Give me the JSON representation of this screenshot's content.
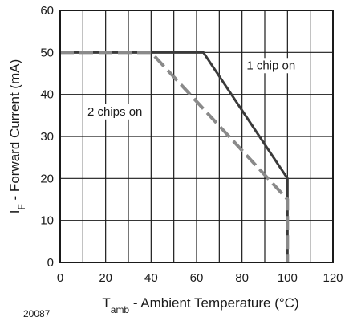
{
  "chart_data": {
    "type": "line",
    "title": "",
    "xlabel": {
      "main": "T",
      "sub": "amb",
      "rest": " - Ambient Temperature (°C)"
    },
    "ylabel": {
      "main": "I",
      "sub": "F",
      "rest": " - Forward Current (mA)"
    },
    "xlim": [
      0,
      120
    ],
    "ylim": [
      0,
      60
    ],
    "xticks": [
      0,
      20,
      40,
      60,
      80,
      100,
      120
    ],
    "yticks": [
      0,
      10,
      20,
      30,
      40,
      50,
      60
    ],
    "x_minor_step": 10,
    "grid": true,
    "series": [
      {
        "name": "1 chip on",
        "style": "solid",
        "color": "#3a3a3a",
        "points": [
          [
            0,
            50
          ],
          [
            63,
            50
          ],
          [
            100,
            20
          ],
          [
            100,
            0
          ]
        ]
      },
      {
        "name": "2 chips on",
        "style": "dashed",
        "color": "#8a8a8a",
        "points": [
          [
            0,
            50
          ],
          [
            40,
            50
          ],
          [
            100,
            15
          ],
          [
            100,
            0
          ]
        ]
      }
    ],
    "annotations": [
      {
        "text": "1 chip on",
        "x": 82,
        "y": 46
      },
      {
        "text": "2 chips on",
        "x": 12,
        "y": 35
      }
    ],
    "figure_code": "20087"
  }
}
